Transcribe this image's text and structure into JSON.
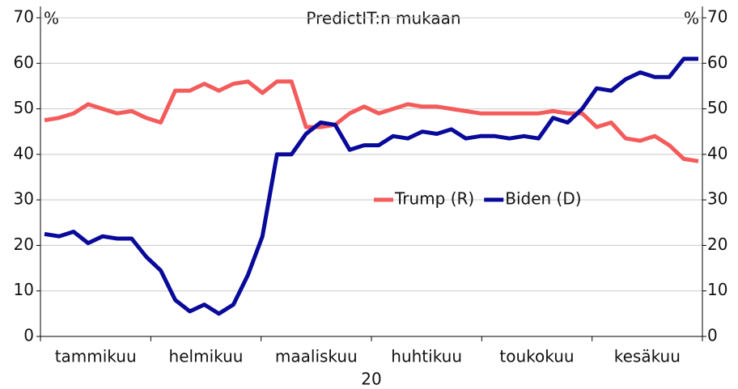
{
  "chart_data": {
    "type": "line",
    "title": "PredictIT:n mukaan",
    "y_unit": "%",
    "xlabel": "20",
    "x_labels": [
      "tammikuu",
      "helmikuu",
      "maaliskuu",
      "huhtikuu",
      "toukokuu",
      "kesäkuu"
    ],
    "ylim": [
      0,
      70
    ],
    "yticks": [
      0,
      10,
      20,
      30,
      40,
      50,
      60,
      70
    ],
    "grid": true,
    "legend": "center",
    "series": [
      {
        "name": "Trump (R)",
        "color": "#f45b5b",
        "values": [
          47.5,
          48,
          49,
          51,
          50,
          49,
          49.5,
          48,
          47,
          54,
          54,
          55.5,
          54,
          55.5,
          56,
          53.5,
          56,
          56,
          46,
          46,
          46.5,
          49,
          50.5,
          49,
          50,
          51,
          50.5,
          50.5,
          50,
          49.5,
          49,
          49,
          49,
          49,
          49,
          49.5,
          49,
          49,
          46,
          47,
          43.5,
          43,
          44,
          42,
          39,
          38.5
        ]
      },
      {
        "name": "Biden (D)",
        "color": "#0a0a9a",
        "values": [
          22.5,
          22,
          23,
          20.5,
          22,
          21.5,
          21.5,
          17.5,
          14.5,
          8,
          5.5,
          7,
          5,
          7,
          13.5,
          22,
          40,
          40,
          44.5,
          47,
          46.5,
          41,
          42,
          42,
          44,
          43.5,
          45,
          44.5,
          45.5,
          43.5,
          44,
          44,
          43.5,
          44,
          43.5,
          48,
          47,
          50,
          54.5,
          54,
          56.5,
          58,
          57,
          57,
          61,
          61
        ]
      }
    ]
  }
}
